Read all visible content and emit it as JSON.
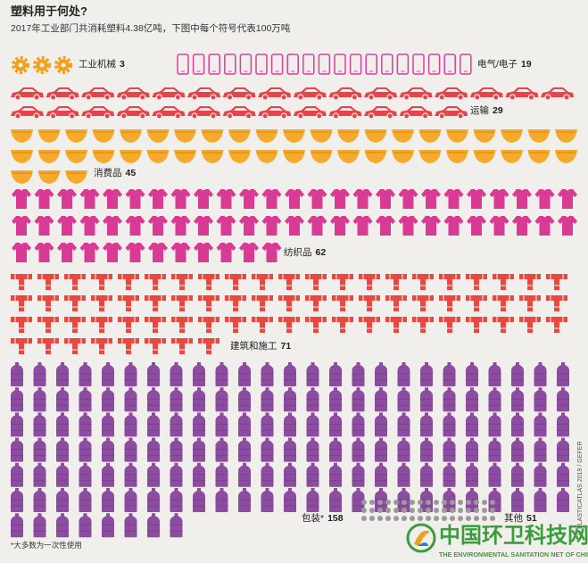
{
  "chart_data": {
    "type": "pictogram",
    "title": "塑料用于何处?",
    "subtitle": "2017年工业部门共消耗塑料4.38亿吨，下图中每个符号代表100万吨",
    "categories": [
      "工业机械",
      "电气/电子",
      "运输",
      "消费品",
      "纺织品",
      "建筑和施工",
      "包装*",
      "其他"
    ],
    "values": [
      3,
      19,
      29,
      45,
      62,
      71,
      158,
      51
    ],
    "colors": [
      "#f0a21e",
      "#d63f9c",
      "#e8434b",
      "#f5aa2c",
      "#d93a94",
      "#e9473f",
      "#8c4da0",
      "#9a9a9a"
    ],
    "footnote": "*大多数为一次性使用",
    "source": "© PLASTICATLAS 2019 / GEFER"
  },
  "watermark": {
    "title": "中国环卫科技网",
    "subtitle": "THE ENVIRONMENTAL SANITATION NET OF CHINA"
  }
}
